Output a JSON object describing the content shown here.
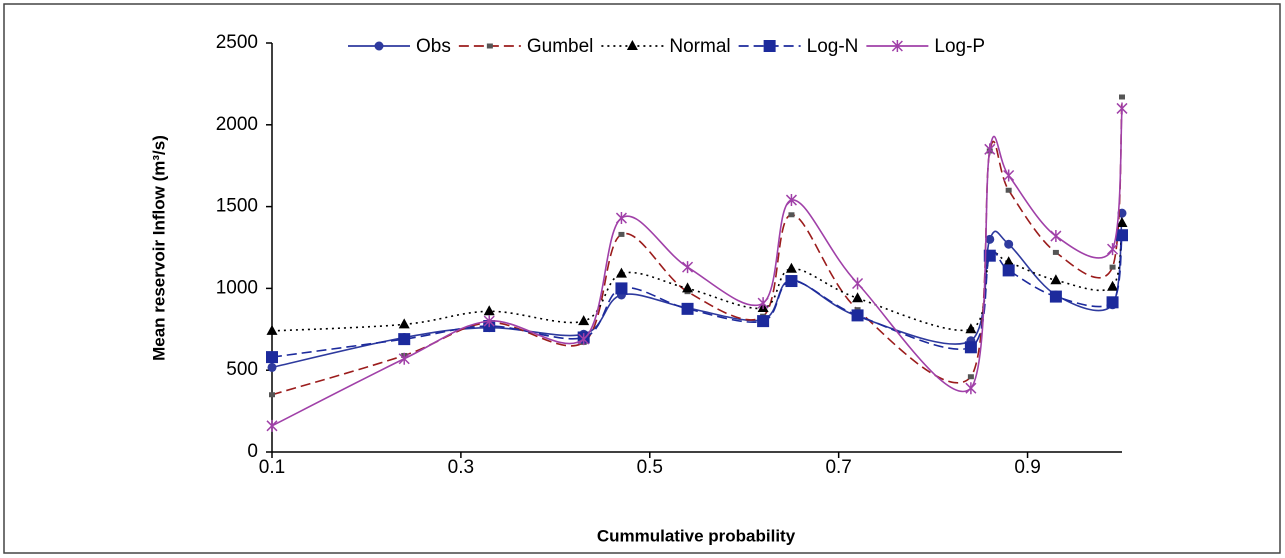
{
  "chart_data": {
    "type": "line",
    "x_label": "Cummulative probability",
    "y_label": "Mean reservoir Inflow (m³/s)",
    "x": [
      0.1,
      0.24,
      0.33,
      0.43,
      0.47,
      0.54,
      0.62,
      0.65,
      0.72,
      0.84,
      0.86,
      0.88,
      0.93,
      0.99,
      1.0
    ],
    "xlim": [
      0.1,
      1.0
    ],
    "xticks": [
      0.1,
      0.3,
      0.5,
      0.7,
      0.9
    ],
    "ylim": [
      0,
      2500
    ],
    "yticks": [
      0,
      500,
      1000,
      1500,
      2000,
      2500
    ],
    "grid": false,
    "legend": "top",
    "series": [
      {
        "name": "Obs",
        "color": "#2e3a9e",
        "dash": "solid",
        "marker": "circle",
        "values": [
          517,
          700,
          760,
          720,
          960,
          880,
          810,
          1050,
          830,
          680,
          1300,
          1270,
          960,
          900,
          1460
        ]
      },
      {
        "name": "Gumbel",
        "color": "#9b1c1c",
        "dash": "dashed",
        "marker": "small-square",
        "values": [
          350,
          590,
          790,
          670,
          1330,
          980,
          830,
          1450,
          870,
          460,
          1840,
          1600,
          1220,
          1130,
          2170
        ]
      },
      {
        "name": "Normal",
        "color": "#000000",
        "dash": "dotted",
        "marker": "triangle",
        "values": [
          740,
          780,
          860,
          800,
          1090,
          1000,
          880,
          1120,
          940,
          750,
          1190,
          1160,
          1050,
          1010,
          1400
        ]
      },
      {
        "name": "Log-N",
        "color": "#1c2a9c",
        "dash": "dashed",
        "marker": "square",
        "values": [
          580,
          690,
          770,
          700,
          1000,
          875,
          800,
          1045,
          835,
          640,
          1200,
          1110,
          950,
          915,
          1325
        ]
      },
      {
        "name": "Log-P",
        "color": "#a040a8",
        "dash": "solid",
        "marker": "star",
        "values": [
          160,
          570,
          800,
          690,
          1430,
          1130,
          910,
          1540,
          1030,
          390,
          1850,
          1690,
          1320,
          1240,
          2100
        ]
      }
    ]
  }
}
